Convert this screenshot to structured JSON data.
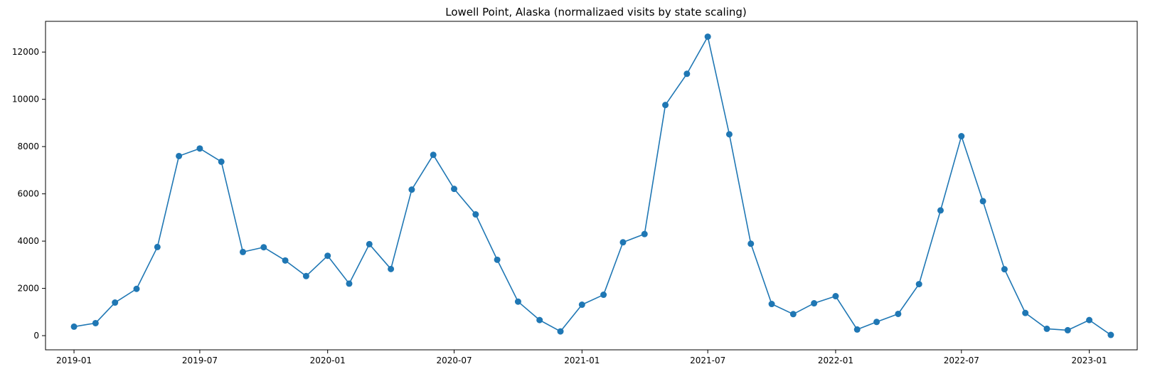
{
  "chart_data": {
    "type": "line",
    "title": "Lowell Point, Alaska (normalizaed visits by state scaling)",
    "xlabel": "",
    "ylabel": "",
    "x_tick_labels": [
      "2019-01",
      "2019-07",
      "2020-01",
      "2020-07",
      "2021-01",
      "2021-07",
      "2022-01",
      "2022-07",
      "2023-01"
    ],
    "y_ticks": [
      0,
      2000,
      4000,
      6000,
      8000,
      10000,
      12000
    ],
    "ylim": [
      -600,
      13300
    ],
    "xlim": [
      "2018-11-21",
      "2023-03-11"
    ],
    "grid": false,
    "legend": "none",
    "marker": "circle",
    "color": "#1f77b4",
    "series": [
      {
        "x": [
          "2019-01-01",
          "2019-02-01",
          "2019-03-01",
          "2019-04-01",
          "2019-05-01",
          "2019-06-01",
          "2019-07-01",
          "2019-08-01",
          "2019-09-01",
          "2019-10-01",
          "2019-11-01",
          "2019-12-01",
          "2020-01-01",
          "2020-02-01",
          "2020-03-01",
          "2020-04-01",
          "2020-05-01",
          "2020-06-01",
          "2020-07-01",
          "2020-08-01",
          "2020-09-01",
          "2020-10-01",
          "2020-11-01",
          "2020-12-01",
          "2021-01-01",
          "2021-02-01",
          "2021-03-01",
          "2021-04-01",
          "2021-05-01",
          "2021-06-01",
          "2021-07-01",
          "2021-08-01",
          "2021-09-01",
          "2021-10-01",
          "2021-11-01",
          "2021-12-01",
          "2022-01-01",
          "2022-02-01",
          "2022-03-01",
          "2022-04-01",
          "2022-05-01",
          "2022-06-01",
          "2022-07-01",
          "2022-08-01",
          "2022-09-01",
          "2022-10-01",
          "2022-11-01",
          "2022-12-01",
          "2023-01-01",
          "2023-02-01"
        ],
        "values": [
          380,
          530,
          1400,
          1980,
          3750,
          7600,
          7920,
          7360,
          3540,
          3740,
          3180,
          2520,
          3380,
          2200,
          3870,
          2820,
          6180,
          7650,
          6210,
          5130,
          3210,
          1440,
          660,
          180,
          1310,
          1730,
          3950,
          4300,
          9760,
          11080,
          12650,
          8520,
          3890,
          1340,
          910,
          1370,
          1670,
          260,
          580,
          920,
          2180,
          5300,
          8440,
          5690,
          2810,
          960,
          290,
          230,
          660,
          30
        ]
      }
    ]
  }
}
